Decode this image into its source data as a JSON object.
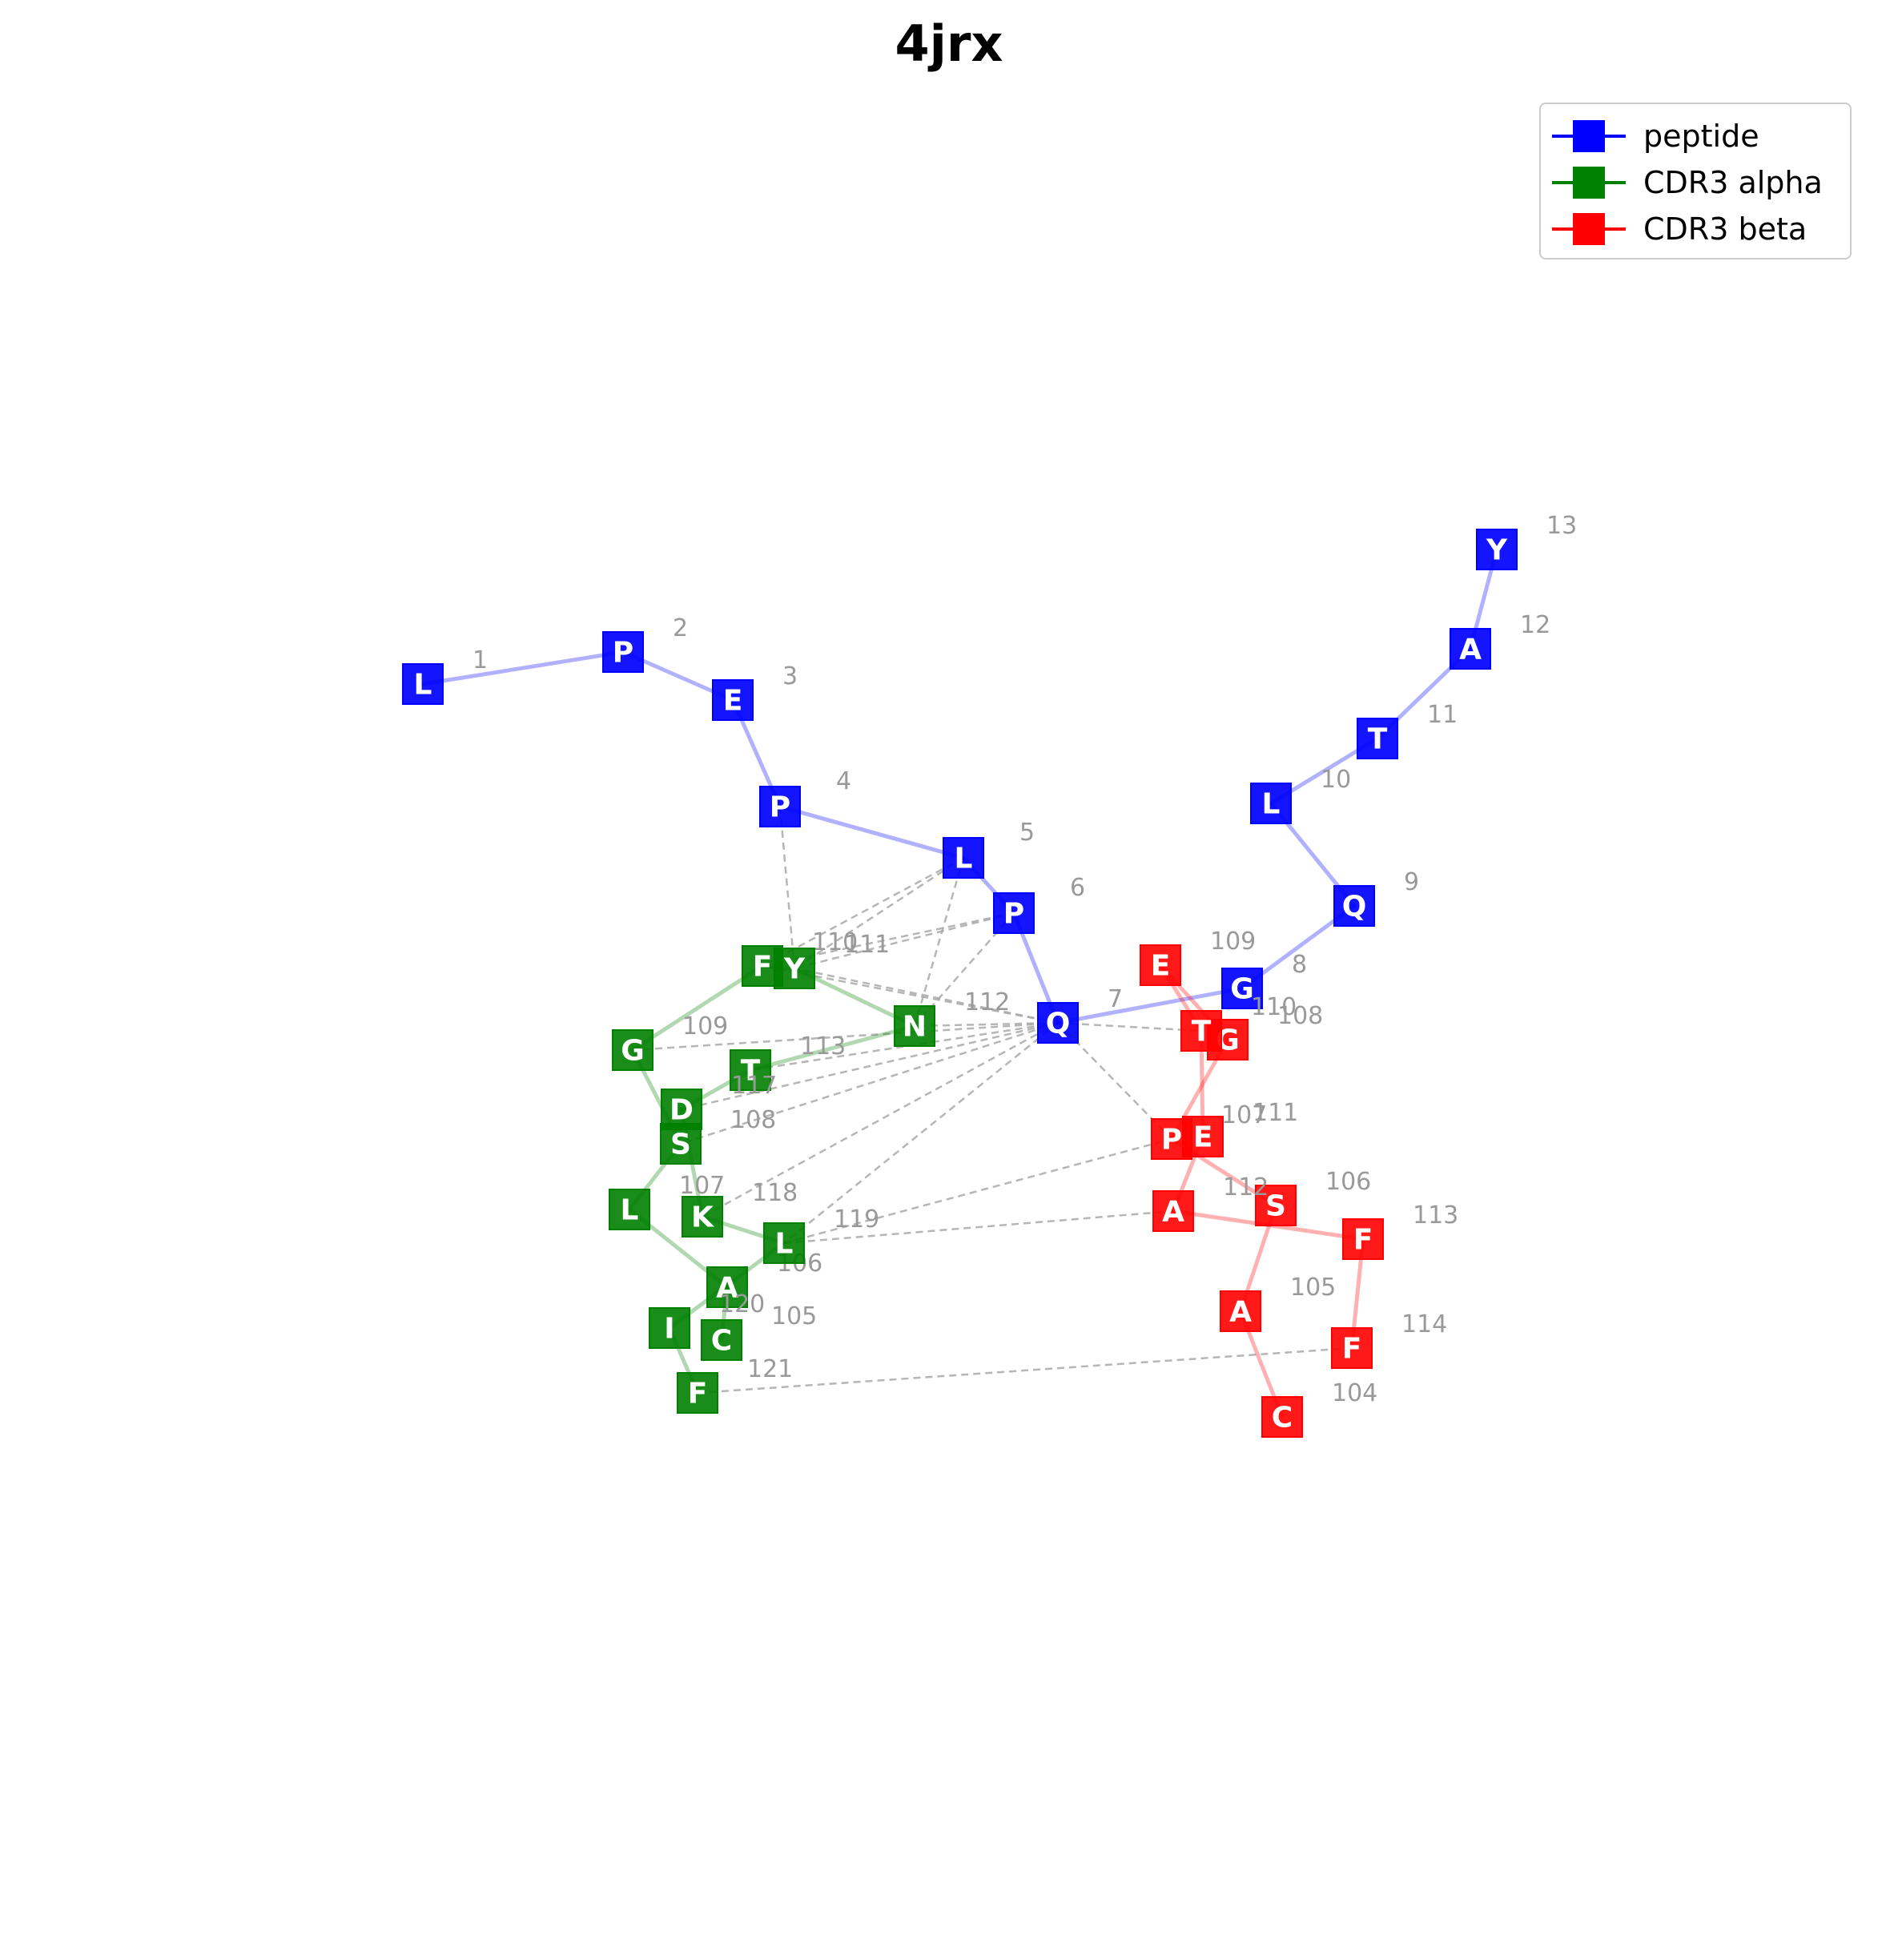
{
  "title": "4jrx",
  "colors": {
    "peptide": "#0000ff",
    "cdr3_alpha": "#008000",
    "cdr3_beta": "#ff0000",
    "contact": "#aaaaaa",
    "index_text": "#999999"
  },
  "legend": [
    {
      "key": "peptide",
      "label": "peptide",
      "color": "#0000ff"
    },
    {
      "key": "cdr3_alpha",
      "label": "CDR3 alpha",
      "color": "#008000"
    },
    {
      "key": "cdr3_beta",
      "label": "CDR3 beta",
      "color": "#ff0000"
    }
  ],
  "chains": {
    "peptide": [
      {
        "id": "p1",
        "res": "L",
        "num": "1"
      },
      {
        "id": "p2",
        "res": "P",
        "num": "2"
      },
      {
        "id": "p3",
        "res": "E",
        "num": "3"
      },
      {
        "id": "p4",
        "res": "P",
        "num": "4"
      },
      {
        "id": "p5",
        "res": "L",
        "num": "5"
      },
      {
        "id": "p6",
        "res": "P",
        "num": "6"
      },
      {
        "id": "p7",
        "res": "Q",
        "num": "7"
      },
      {
        "id": "p8",
        "res": "G",
        "num": "8"
      },
      {
        "id": "p9",
        "res": "Q",
        "num": "9"
      },
      {
        "id": "p10",
        "res": "L",
        "num": "10"
      },
      {
        "id": "p11",
        "res": "T",
        "num": "11"
      },
      {
        "id": "p12",
        "res": "A",
        "num": "12"
      },
      {
        "id": "p13",
        "res": "Y",
        "num": "13"
      }
    ],
    "cdr3_alpha": [
      {
        "id": "a105",
        "res": "C",
        "num": "105"
      },
      {
        "id": "a106",
        "res": "A",
        "num": "106"
      },
      {
        "id": "a107",
        "res": "L",
        "num": "107"
      },
      {
        "id": "a108",
        "res": "S",
        "num": "108"
      },
      {
        "id": "a109",
        "res": "G",
        "num": "109"
      },
      {
        "id": "a110",
        "res": "F",
        "num": "110"
      },
      {
        "id": "a111",
        "res": "Y",
        "num": "111"
      },
      {
        "id": "a112",
        "res": "N",
        "num": "112"
      },
      {
        "id": "a113",
        "res": "T",
        "num": "113"
      },
      {
        "id": "a117",
        "res": "D",
        "num": "117"
      },
      {
        "id": "a118",
        "res": "K",
        "num": "118"
      },
      {
        "id": "a119",
        "res": "L",
        "num": "119"
      },
      {
        "id": "a120",
        "res": "I",
        "num": "120"
      },
      {
        "id": "a121",
        "res": "F",
        "num": "121"
      }
    ],
    "cdr3_beta": [
      {
        "id": "b104",
        "res": "C",
        "num": "104"
      },
      {
        "id": "b105",
        "res": "A",
        "num": "105"
      },
      {
        "id": "b106",
        "res": "S",
        "num": "106"
      },
      {
        "id": "b107",
        "res": "P",
        "num": "107"
      },
      {
        "id": "b108",
        "res": "G",
        "num": "108"
      },
      {
        "id": "b109",
        "res": "E",
        "num": "109"
      },
      {
        "id": "b110",
        "res": "T",
        "num": "110"
      },
      {
        "id": "b111",
        "res": "E",
        "num": "111"
      },
      {
        "id": "b112",
        "res": "A",
        "num": "112"
      },
      {
        "id": "b113",
        "res": "F",
        "num": "113"
      },
      {
        "id": "b114",
        "res": "F",
        "num": "114"
      }
    ]
  },
  "backbone": {
    "peptide": [
      [
        "p1",
        "p2"
      ],
      [
        "p2",
        "p3"
      ],
      [
        "p3",
        "p4"
      ],
      [
        "p4",
        "p5"
      ],
      [
        "p5",
        "p6"
      ],
      [
        "p6",
        "p7"
      ],
      [
        "p7",
        "p8"
      ],
      [
        "p8",
        "p9"
      ],
      [
        "p9",
        "p10"
      ],
      [
        "p10",
        "p11"
      ],
      [
        "p11",
        "p12"
      ],
      [
        "p12",
        "p13"
      ]
    ],
    "cdr3_alpha": [
      [
        "a105",
        "a106"
      ],
      [
        "a106",
        "a107"
      ],
      [
        "a107",
        "a108"
      ],
      [
        "a108",
        "a109"
      ],
      [
        "a109",
        "a110"
      ],
      [
        "a110",
        "a111"
      ],
      [
        "a111",
        "a112"
      ],
      [
        "a112",
        "a113"
      ],
      [
        "a113",
        "a117"
      ],
      [
        "a117",
        "a118"
      ],
      [
        "a118",
        "a119"
      ],
      [
        "a119",
        "a120"
      ],
      [
        "a120",
        "a121"
      ]
    ],
    "cdr3_beta": [
      [
        "b104",
        "b105"
      ],
      [
        "b105",
        "b106"
      ],
      [
        "b106",
        "b107"
      ],
      [
        "b107",
        "b108"
      ],
      [
        "b108",
        "b109"
      ],
      [
        "b109",
        "b110"
      ],
      [
        "b110",
        "b111"
      ],
      [
        "b111",
        "b112"
      ],
      [
        "b112",
        "b113"
      ],
      [
        "b113",
        "b114"
      ]
    ]
  },
  "contacts": [
    [
      "p4",
      "a111"
    ],
    [
      "p5",
      "a110"
    ],
    [
      "p5",
      "a111"
    ],
    [
      "p5",
      "a112"
    ],
    [
      "p6",
      "a110"
    ],
    [
      "p6",
      "a111"
    ],
    [
      "p6",
      "a112"
    ],
    [
      "p7",
      "a110"
    ],
    [
      "p7",
      "a111"
    ],
    [
      "p7",
      "a112"
    ],
    [
      "p7",
      "a109"
    ],
    [
      "p7",
      "a113"
    ],
    [
      "p7",
      "a117"
    ],
    [
      "p7",
      "a108"
    ],
    [
      "p7",
      "a118"
    ],
    [
      "p7",
      "a119"
    ],
    [
      "p7",
      "b107"
    ],
    [
      "p7",
      "b110"
    ],
    [
      "a119",
      "b107"
    ],
    [
      "a119",
      "b112"
    ],
    [
      "a121",
      "b114"
    ]
  ]
}
